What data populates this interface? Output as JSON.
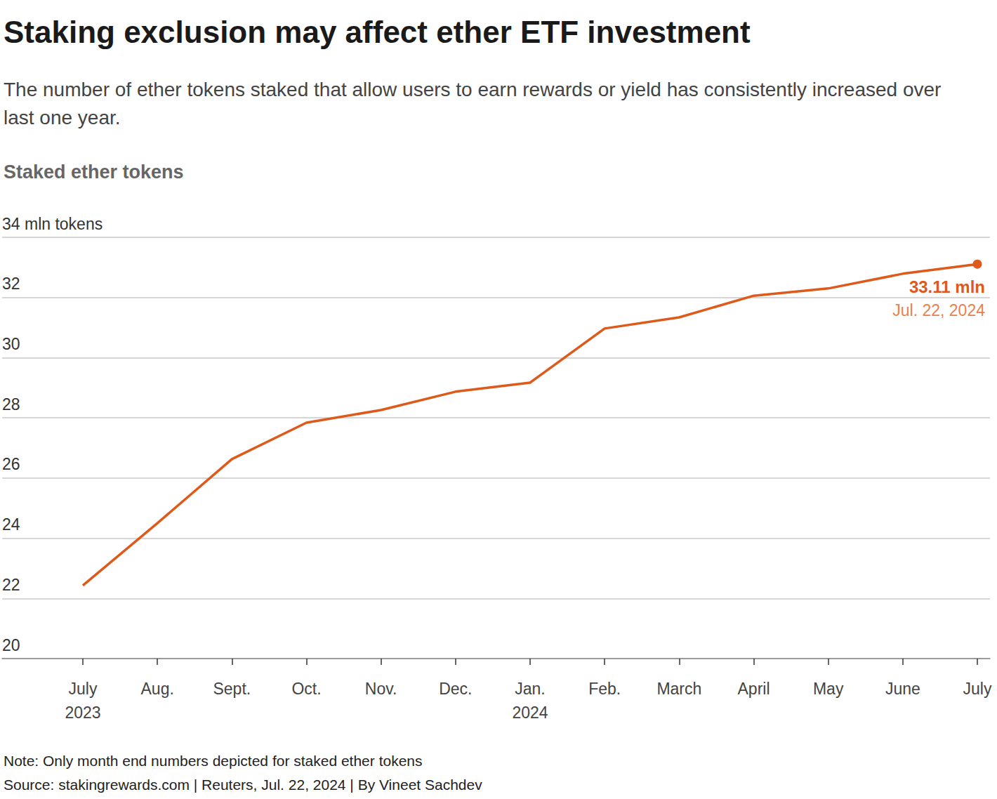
{
  "chart_data": {
    "type": "line",
    "title": "Staking exclusion may affect ether ETF investment",
    "subtitle": "The number of ether tokens staked that allow users to earn rewards or yield has consistently increased over last one year.",
    "y_label": "Staked ether tokens",
    "categories": [
      "July\n2023",
      "Aug.",
      "Sept.",
      "Oct.",
      "Nov.",
      "Dec.",
      "Jan.\n2024",
      "Feb.",
      "March",
      "April",
      "May",
      "June",
      "July"
    ],
    "values": [
      22.43,
      24.5,
      26.63,
      27.84,
      28.26,
      28.87,
      29.17,
      30.97,
      31.34,
      32.06,
      32.3,
      32.79,
      33.11
    ],
    "value_labels": [
      null,
      null,
      null,
      null,
      null,
      null,
      null,
      null,
      null,
      null,
      null,
      null,
      "33.11 mln"
    ],
    "annotation": "Jul. 22, 2024",
    "color": "#dd5a1b",
    "ylim": [
      20,
      34
    ],
    "yticks": [
      20,
      22,
      24,
      26,
      28,
      30,
      32,
      {
        "value": 34,
        "label": "34 mln tokens"
      }
    ],
    "grid": true,
    "note": "Note: Only month end numbers depicted for staked ether tokens",
    "source": "Source: stakingrewards.com | Reuters, Jul. 22, 2024 | By Vineet Sachdev"
  }
}
